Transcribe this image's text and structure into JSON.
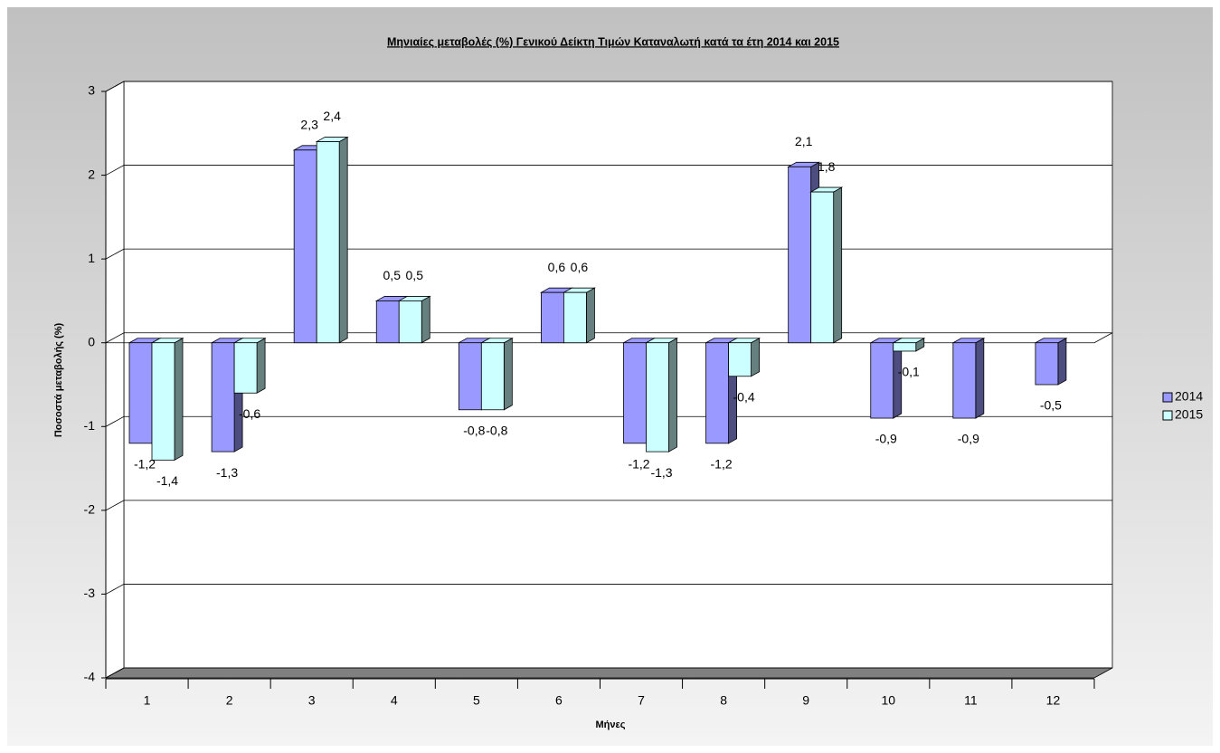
{
  "chart_data": {
    "type": "bar3d",
    "title": "Μηνιαίες μεταβολές (%) Γενικού Δείκτη Τιμών Καταναλωτή κατά τα έτη 2014 και 2015",
    "x_label": "Μήνες",
    "y_label": "Ποσοστά μεταβολής (%)",
    "categories": [
      "1",
      "2",
      "3",
      "4",
      "5",
      "6",
      "7",
      "8",
      "9",
      "10",
      "11",
      "12"
    ],
    "series": [
      {
        "name": "2014",
        "color": "#9999ff",
        "side_color": "#4d4d80",
        "values": [
          -1.2,
          -1.3,
          2.3,
          0.5,
          -0.8,
          0.6,
          -1.2,
          -1.2,
          2.1,
          -0.9,
          -0.9,
          -0.5
        ],
        "value_labels": [
          "-1,2",
          "-1,3",
          "2,3",
          "0,5",
          "-0,8",
          "0,6",
          "-1,2",
          "-1,2",
          "2,1",
          "-0,9",
          "-0,9",
          "-0,5"
        ]
      },
      {
        "name": "2015",
        "color": "#ccffff",
        "side_color": "#668080",
        "values": [
          -1.4,
          -0.6,
          2.4,
          0.5,
          -0.8,
          0.6,
          -1.3,
          -0.4,
          1.8,
          -0.1,
          null,
          null
        ],
        "value_labels": [
          "-1,4",
          "-0,6",
          "2,4",
          "0,5",
          "-0,8",
          "0,6",
          "-1,3",
          "-0,4",
          "1,8",
          "-0,1",
          null,
          null
        ]
      }
    ],
    "ylim": [
      -4,
      3
    ],
    "yticks": [
      -4,
      -3,
      -2,
      -1,
      0,
      1,
      2,
      3
    ],
    "grid": true,
    "legend": "right"
  }
}
